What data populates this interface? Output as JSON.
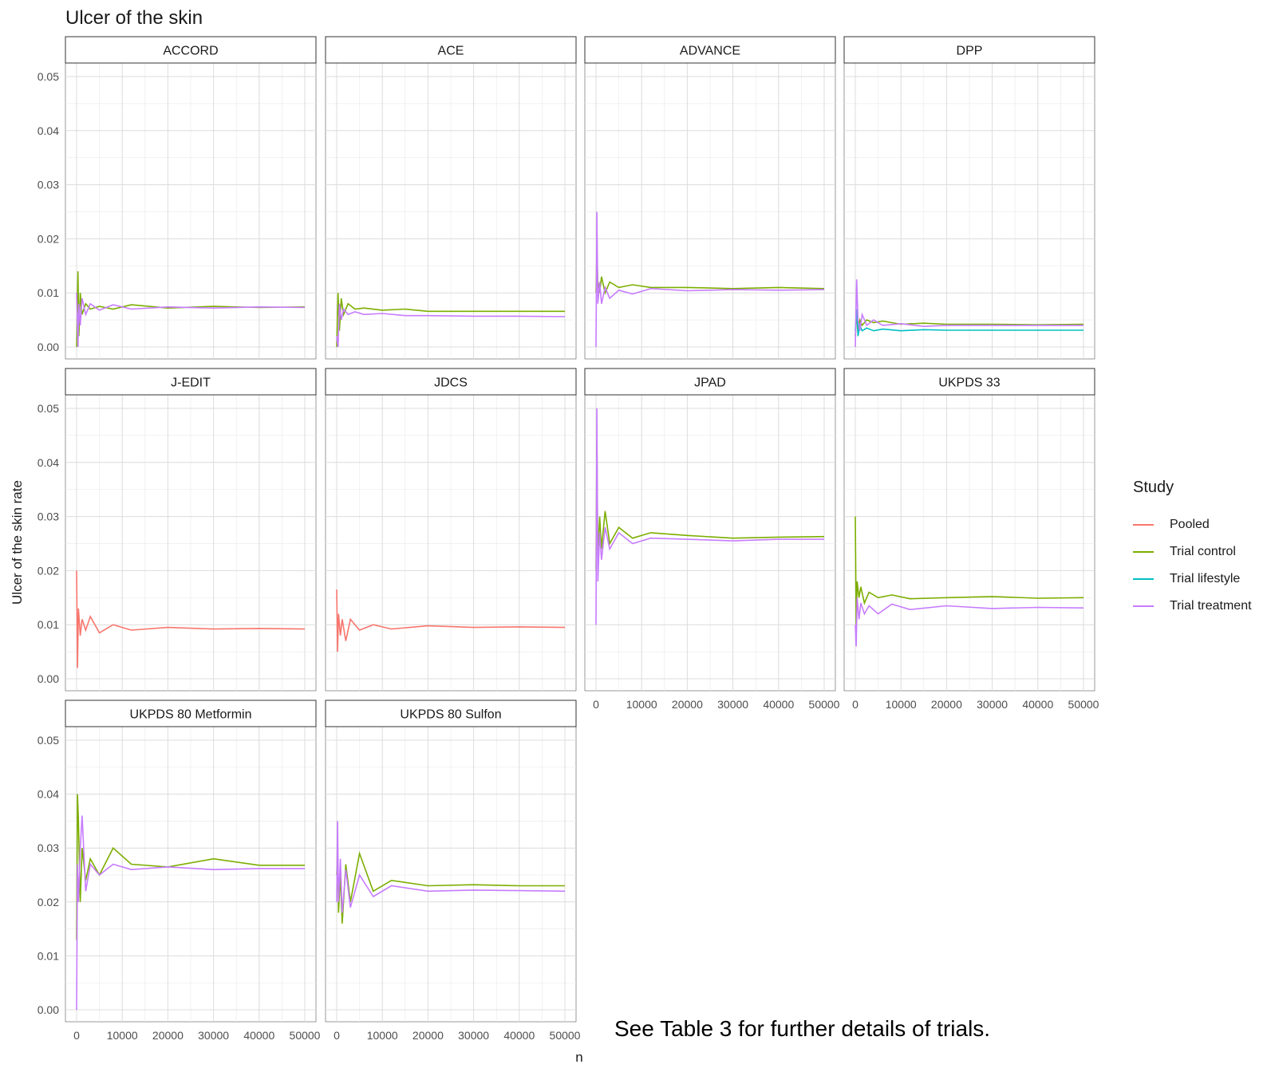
{
  "chart_data": {
    "type": "line",
    "title": "Ulcer of the skin",
    "xlabel": "n",
    "ylabel": "Ulcer of the skin rate",
    "xlim": [
      0,
      50000
    ],
    "ylim": [
      0,
      0.05
    ],
    "x_ticks": [
      "0",
      "10000",
      "20000",
      "30000",
      "40000",
      "50000"
    ],
    "y_ticks": [
      "0.00",
      "0.01",
      "0.02",
      "0.03",
      "0.04",
      "0.05"
    ],
    "grid": true,
    "legend_position": "right",
    "legend": {
      "title": "Study",
      "items": [
        {
          "name": "Pooled",
          "color": "#F8766D"
        },
        {
          "name": "Trial control",
          "color": "#7CAE00"
        },
        {
          "name": "Trial lifestyle",
          "color": "#00BFC4"
        },
        {
          "name": "Trial treatment",
          "color": "#C77CFF"
        }
      ]
    },
    "panels": [
      {
        "name": "ACCORD",
        "series": [
          {
            "name": "Trial control",
            "x": [
              0,
              300,
              500,
              800,
              1200,
              2000,
              3000,
              5000,
              8000,
              12000,
              20000,
              30000,
              40000,
              50000
            ],
            "y": [
              0.0,
              0.014,
              0.002,
              0.01,
              0.006,
              0.008,
              0.007,
              0.0075,
              0.007,
              0.0078,
              0.0072,
              0.0075,
              0.0073,
              0.0074
            ]
          },
          {
            "name": "Trial treatment",
            "x": [
              0,
              300,
              500,
              800,
              1200,
              2000,
              3000,
              5000,
              8000,
              12000,
              20000,
              30000,
              40000,
              50000
            ],
            "y": [
              0.01,
              0.0,
              0.008,
              0.004,
              0.009,
              0.006,
              0.008,
              0.0068,
              0.0078,
              0.007,
              0.0074,
              0.0072,
              0.0074,
              0.0073
            ]
          }
        ]
      },
      {
        "name": "ACE",
        "series": [
          {
            "name": "Trial control",
            "x": [
              0,
              300,
              600,
              1000,
              1500,
              2500,
              4000,
              6000,
              10000,
              15000,
              20000,
              30000,
              40000,
              50000
            ],
            "y": [
              0.0,
              0.01,
              0.003,
              0.009,
              0.006,
              0.008,
              0.007,
              0.0072,
              0.0068,
              0.007,
              0.0066,
              0.0066,
              0.0066,
              0.0066
            ]
          },
          {
            "name": "Trial treatment",
            "x": [
              0,
              300,
              600,
              1000,
              1500,
              2500,
              4000,
              6000,
              10000,
              15000,
              20000,
              30000,
              40000,
              50000
            ],
            "y": [
              0.002,
              0.0,
              0.008,
              0.005,
              0.007,
              0.006,
              0.0065,
              0.006,
              0.0062,
              0.0058,
              0.0058,
              0.0057,
              0.0057,
              0.0056
            ]
          }
        ]
      },
      {
        "name": "ADVANCE",
        "series": [
          {
            "name": "Trial control",
            "x": [
              0,
              200,
              400,
              800,
              1200,
              2000,
              3000,
              5000,
              8000,
              12000,
              20000,
              30000,
              40000,
              50000
            ],
            "y": [
              0.01,
              0.018,
              0.012,
              0.01,
              0.013,
              0.01,
              0.012,
              0.011,
              0.0115,
              0.011,
              0.011,
              0.0108,
              0.011,
              0.0108
            ]
          },
          {
            "name": "Trial treatment",
            "x": [
              0,
              200,
              400,
              800,
              1200,
              2000,
              3000,
              5000,
              8000,
              12000,
              20000,
              30000,
              40000,
              50000
            ],
            "y": [
              0.0,
              0.025,
              0.008,
              0.012,
              0.008,
              0.011,
              0.009,
              0.0105,
              0.0098,
              0.0108,
              0.0104,
              0.0106,
              0.0105,
              0.0106
            ]
          }
        ]
      },
      {
        "name": "DPP",
        "series": [
          {
            "name": "Trial control",
            "x": [
              0,
              300,
              600,
              1000,
              1500,
              2500,
              4000,
              6000,
              10000,
              15000,
              20000,
              30000,
              40000,
              50000
            ],
            "y": [
              0.002,
              0.006,
              0.003,
              0.005,
              0.004,
              0.005,
              0.0045,
              0.0048,
              0.0042,
              0.0044,
              0.0042,
              0.0042,
              0.0041,
              0.0042
            ]
          },
          {
            "name": "Trial lifestyle",
            "x": [
              0,
              300,
              600,
              1000,
              1500,
              2500,
              4000,
              6000,
              10000,
              15000,
              20000,
              30000,
              40000,
              50000
            ],
            "y": [
              0.003,
              0.007,
              0.002,
              0.004,
              0.003,
              0.0035,
              0.003,
              0.0033,
              0.003,
              0.0032,
              0.0031,
              0.0031,
              0.0031,
              0.0031
            ]
          },
          {
            "name": "Trial treatment",
            "x": [
              0,
              300,
              600,
              1000,
              1500,
              2500,
              4000,
              6000,
              10000,
              15000,
              20000,
              30000,
              40000,
              50000
            ],
            "y": [
              0.0,
              0.0125,
              0.005,
              0.003,
              0.006,
              0.004,
              0.005,
              0.004,
              0.0043,
              0.0038,
              0.004,
              0.004,
              0.004,
              0.004
            ]
          }
        ]
      },
      {
        "name": "J-EDIT",
        "series": [
          {
            "name": "Pooled",
            "x": [
              0,
              200,
              400,
              800,
              1200,
              2000,
              3000,
              5000,
              8000,
              12000,
              20000,
              30000,
              40000,
              50000
            ],
            "y": [
              0.02,
              0.002,
              0.013,
              0.008,
              0.011,
              0.009,
              0.0115,
              0.0085,
              0.01,
              0.009,
              0.0095,
              0.0092,
              0.0093,
              0.0092
            ]
          }
        ]
      },
      {
        "name": "JDCS",
        "series": [
          {
            "name": "Pooled",
            "x": [
              0,
              200,
              400,
              800,
              1200,
              2000,
              3000,
              5000,
              8000,
              12000,
              20000,
              30000,
              40000,
              50000
            ],
            "y": [
              0.0165,
              0.005,
              0.012,
              0.008,
              0.011,
              0.007,
              0.011,
              0.009,
              0.01,
              0.0092,
              0.0098,
              0.0095,
              0.0096,
              0.0095
            ]
          }
        ]
      },
      {
        "name": "JPAD",
        "series": [
          {
            "name": "Trial control",
            "x": [
              0,
              200,
              400,
              800,
              1200,
              2000,
              3000,
              5000,
              8000,
              12000,
              20000,
              30000,
              40000,
              50000
            ],
            "y": [
              0.02,
              0.044,
              0.022,
              0.03,
              0.024,
              0.031,
              0.025,
              0.028,
              0.026,
              0.027,
              0.0265,
              0.026,
              0.0262,
              0.0263
            ]
          },
          {
            "name": "Trial treatment",
            "x": [
              0,
              200,
              400,
              800,
              1200,
              2000,
              3000,
              5000,
              8000,
              12000,
              20000,
              30000,
              40000,
              50000
            ],
            "y": [
              0.01,
              0.05,
              0.018,
              0.027,
              0.022,
              0.028,
              0.024,
              0.027,
              0.025,
              0.026,
              0.0258,
              0.0255,
              0.0258,
              0.0258
            ]
          }
        ]
      },
      {
        "name": "UKPDS 33",
        "series": [
          {
            "name": "Trial control",
            "x": [
              0,
              200,
              400,
              800,
              1200,
              2000,
              3000,
              5000,
              8000,
              12000,
              20000,
              30000,
              40000,
              50000
            ],
            "y": [
              0.03,
              0.01,
              0.018,
              0.015,
              0.017,
              0.014,
              0.016,
              0.015,
              0.0155,
              0.0148,
              0.015,
              0.0152,
              0.0149,
              0.015
            ]
          },
          {
            "name": "Trial treatment",
            "x": [
              0,
              200,
              400,
              800,
              1200,
              2000,
              3000,
              5000,
              8000,
              12000,
              20000,
              30000,
              40000,
              50000
            ],
            "y": [
              0.01,
              0.006,
              0.015,
              0.011,
              0.014,
              0.012,
              0.0135,
              0.012,
              0.0138,
              0.0128,
              0.0135,
              0.013,
              0.0132,
              0.0131
            ]
          }
        ]
      },
      {
        "name": "UKPDS 80 Metformin",
        "series": [
          {
            "name": "Trial control",
            "x": [
              0,
              200,
              400,
              800,
              1200,
              2000,
              3000,
              5000,
              8000,
              12000,
              20000,
              30000,
              40000,
              50000
            ],
            "y": [
              0.013,
              0.04,
              0.035,
              0.02,
              0.03,
              0.024,
              0.028,
              0.025,
              0.03,
              0.027,
              0.0265,
              0.028,
              0.0268,
              0.0268
            ]
          },
          {
            "name": "Trial treatment",
            "x": [
              0,
              200,
              400,
              800,
              1200,
              2000,
              3000,
              5000,
              8000,
              12000,
              20000,
              30000,
              40000,
              50000
            ],
            "y": [
              0.0,
              0.027,
              0.02,
              0.03,
              0.036,
              0.022,
              0.027,
              0.025,
              0.027,
              0.026,
              0.0265,
              0.026,
              0.0262,
              0.0262
            ]
          }
        ]
      },
      {
        "name": "UKPDS 80 Sulfon",
        "series": [
          {
            "name": "Trial control",
            "x": [
              0,
              200,
              400,
              800,
              1200,
              2000,
              3000,
              5000,
              8000,
              12000,
              20000,
              30000,
              40000,
              50000
            ],
            "y": [
              0.025,
              0.03,
              0.018,
              0.025,
              0.016,
              0.027,
              0.02,
              0.029,
              0.022,
              0.024,
              0.023,
              0.0232,
              0.023,
              0.023
            ]
          },
          {
            "name": "Trial treatment",
            "x": [
              0,
              200,
              400,
              800,
              1200,
              2000,
              3000,
              5000,
              8000,
              12000,
              20000,
              30000,
              40000,
              50000
            ],
            "y": [
              0.02,
              0.035,
              0.02,
              0.028,
              0.018,
              0.026,
              0.019,
              0.025,
              0.021,
              0.023,
              0.022,
              0.0222,
              0.0221,
              0.022
            ]
          }
        ]
      }
    ]
  },
  "footnote": "See Table 3 for further details of trials."
}
